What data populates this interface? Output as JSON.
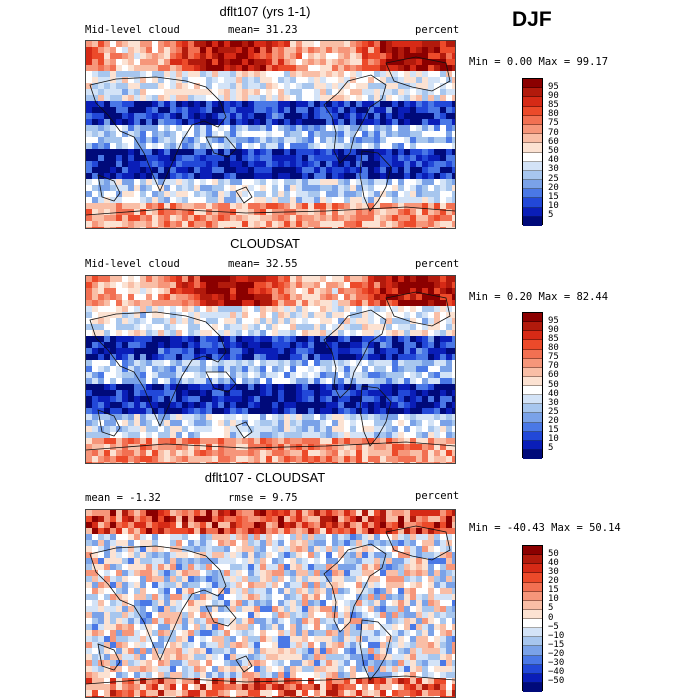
{
  "season": "DJF",
  "panels": [
    {
      "title": "dflt107 (yrs 1-1)",
      "left_label": "Mid-level cloud",
      "center_label": "mean=  31.23",
      "units": "percent",
      "minmax": "Min =   0.00 Max =  99.17",
      "colorbar_levels": [
        "95",
        "90",
        "85",
        "80",
        "75",
        "70",
        "60",
        "50",
        "40",
        "30",
        "25",
        "20",
        "15",
        "10",
        "5"
      ],
      "colorbar_colors": [
        "#8b0000",
        "#b21a0c",
        "#d62a16",
        "#ec4a2a",
        "#f27052",
        "#f6967a",
        "#f9bea6",
        "#fce2d2",
        "#ffffff",
        "#d3e3f7",
        "#a7c6ee",
        "#7aa2e8",
        "#4a78e6",
        "#2248d8",
        "#0a1eb8",
        "#000a7a"
      ]
    },
    {
      "title": "CLOUDSAT",
      "left_label": "Mid-level cloud",
      "center_label": "mean=  32.55",
      "units": "percent",
      "minmax": "Min =   0.20 Max =  82.44",
      "colorbar_levels": [
        "95",
        "90",
        "85",
        "80",
        "75",
        "70",
        "60",
        "50",
        "40",
        "30",
        "25",
        "20",
        "15",
        "10",
        "5"
      ],
      "colorbar_colors": [
        "#8b0000",
        "#b21a0c",
        "#d62a16",
        "#ec4a2a",
        "#f27052",
        "#f6967a",
        "#f9bea6",
        "#fce2d2",
        "#ffffff",
        "#d3e3f7",
        "#a7c6ee",
        "#7aa2e8",
        "#4a78e6",
        "#2248d8",
        "#0a1eb8",
        "#000a7a"
      ]
    },
    {
      "title": "dflt107 - CLOUDSAT",
      "left_label": "mean =  -1.32",
      "center_label": "rmse =   9.75",
      "units": "percent",
      "minmax": "Min = -40.43 Max =  50.14",
      "colorbar_levels": [
        "50",
        "40",
        "30",
        "20",
        "15",
        "10",
        "5",
        "0",
        "−5",
        "−10",
        "−15",
        "−20",
        "−30",
        "−40",
        "−50"
      ],
      "colorbar_colors": [
        "#8b0000",
        "#b21a0c",
        "#d62a16",
        "#ec4a2a",
        "#f27052",
        "#f6967a",
        "#f9bea6",
        "#fce2d2",
        "#ffffff",
        "#d3e3f7",
        "#a7c6ee",
        "#7aa2e8",
        "#4a78e6",
        "#2248d8",
        "#0a1eb8",
        "#000a7a"
      ]
    }
  ],
  "chart_data": [
    {
      "type": "heatmap",
      "title": "dflt107 (yrs 1-1)",
      "variable": "Mid-level cloud",
      "units": "percent",
      "mean": 31.23,
      "min": 0.0,
      "max": 99.17,
      "levels": [
        5,
        10,
        15,
        20,
        25,
        30,
        40,
        50,
        60,
        70,
        75,
        80,
        85,
        90,
        95
      ]
    },
    {
      "type": "heatmap",
      "title": "CLOUDSAT",
      "variable": "Mid-level cloud",
      "units": "percent",
      "mean": 32.55,
      "min": 0.2,
      "max": 82.44,
      "levels": [
        5,
        10,
        15,
        20,
        25,
        30,
        40,
        50,
        60,
        70,
        75,
        80,
        85,
        90,
        95
      ]
    },
    {
      "type": "heatmap",
      "title": "dflt107 - CLOUDSAT",
      "units": "percent",
      "mean": -1.32,
      "rmse": 9.75,
      "min": -40.43,
      "max": 50.14,
      "levels": [
        -50,
        -40,
        -30,
        -20,
        -15,
        -10,
        -5,
        0,
        5,
        10,
        15,
        20,
        30,
        40,
        50
      ]
    }
  ]
}
